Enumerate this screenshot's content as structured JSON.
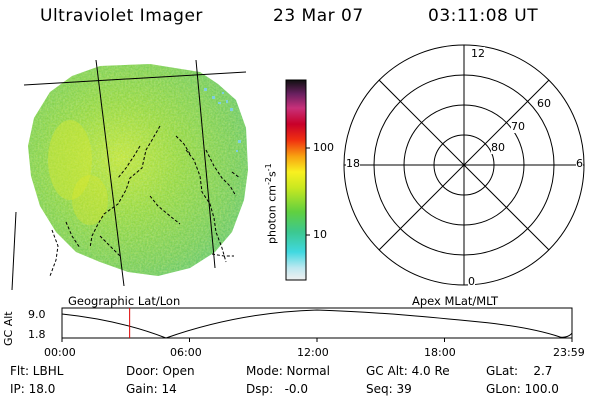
{
  "header": {
    "title": "Ultraviolet Imager",
    "date": "23 Mar 07",
    "time": "03:11:08 UT"
  },
  "colorbar": {
    "unit_label": "photon cm",
    "unit_sup1": "-2",
    "unit_mid": "s",
    "unit_sup2": "-1",
    "tick_100": "100",
    "tick_10": "10"
  },
  "polar": {
    "labels": {
      "top": "12",
      "left": "18",
      "right": "6",
      "bottom": "0",
      "r60": "60",
      "r70": "70",
      "r80": "80"
    }
  },
  "captions": {
    "left": "Geographic Lat/Lon",
    "right": "Apex MLat/MLT"
  },
  "alt_plot": {
    "ylabel": "GC Alt",
    "y_top": "9.0",
    "y_bottom": "1.8",
    "x_ticks": [
      "00:00",
      "06:00",
      "12:00",
      "18:00",
      "23:59"
    ],
    "marker_time": "03:11"
  },
  "footer": {
    "filter": "Flt: LBHL",
    "ip": "IP: 18.0",
    "door": "Door: Open",
    "gain": "Gain: 14",
    "mode": "Mode: Normal",
    "dsp": "Dsp:   -0.0",
    "gc_alt": "GC Alt: 4.0 Re",
    "seq": "Seq: 39",
    "glat": "GLat:    2.7",
    "glon": "GLon: 100.0"
  },
  "colors": {
    "marker": "#dd0000",
    "bg": "#ffffff"
  }
}
